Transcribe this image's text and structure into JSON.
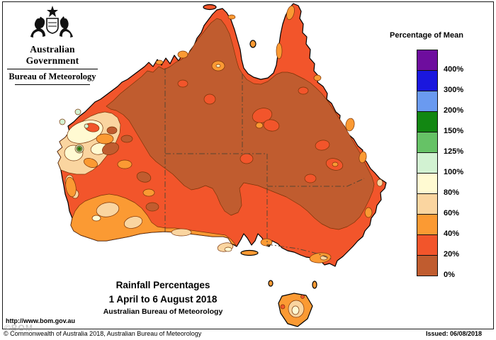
{
  "header": {
    "government": "Australian Government",
    "agency": "Bureau of Meteorology"
  },
  "legend": {
    "title": "Percentage of Mean",
    "entries": [
      {
        "label": "400%",
        "color": "#6E0D9E"
      },
      {
        "label": "300%",
        "color": "#1A17DE"
      },
      {
        "label": "200%",
        "color": "#6A9AF0"
      },
      {
        "label": "150%",
        "color": "#128712"
      },
      {
        "label": "125%",
        "color": "#66C266"
      },
      {
        "label": "100%",
        "color": "#D2F2D2"
      },
      {
        "label": "80%",
        "color": "#FFFAD2"
      },
      {
        "label": "60%",
        "color": "#FAD5A0"
      },
      {
        "label": "40%",
        "color": "#FB9A33"
      },
      {
        "label": "20%",
        "color": "#F2552B"
      },
      {
        "label": "0%",
        "color": "#C05C2F"
      }
    ]
  },
  "caption": {
    "title": "Rainfall Percentages",
    "period": "1 April to 6 August 2018",
    "source": "Australian Bureau of Meteorology"
  },
  "footer": {
    "url": "http://www.bom.gov.au",
    "watermark": "©BOM",
    "copyright": "© Commonwealth of Australia 2018, Australian Bureau of Meteorology",
    "issued": "Issued: 06/08/2018"
  },
  "palette": {
    "purple": "#6E0D9E",
    "blue": "#1A17DE",
    "blue_light": "#6A9AF0",
    "green": "#128712",
    "green_mid": "#66C266",
    "green_pale": "#D2F2D2",
    "cream": "#FFFAD2",
    "peach": "#FAD5A0",
    "orange": "#FB9A33",
    "red_orange": "#F2552B",
    "brown": "#C05C2F",
    "contour": "#7a3408",
    "stateline": "#5a4632"
  },
  "chart_data": {
    "type": "choropleth-map",
    "region": "Australia",
    "metric": "Rainfall percentage of mean",
    "period": "1 April to 6 August 2018",
    "scale_percent_of_mean": [
      0,
      20,
      40,
      60,
      80,
      100,
      125,
      150,
      200,
      300,
      400
    ],
    "legend_position": "right",
    "observed_pattern": {
      "interior_north_and_east": "0-20% of mean (brown, dominant)",
      "west_center_and_coastal_ring": "20-40% of mean (red-orange)",
      "southern_coast_and_southwest": "40-60% of mean (orange)",
      "gascoyne_west_coast_pocket": "60-125% of mean (peach, cream, pale green)",
      "small_west_coast_spot": "150-200% of mean (green bullseye)",
      "tasmania": "40-80% of mean (orange with peach centre)"
    }
  }
}
